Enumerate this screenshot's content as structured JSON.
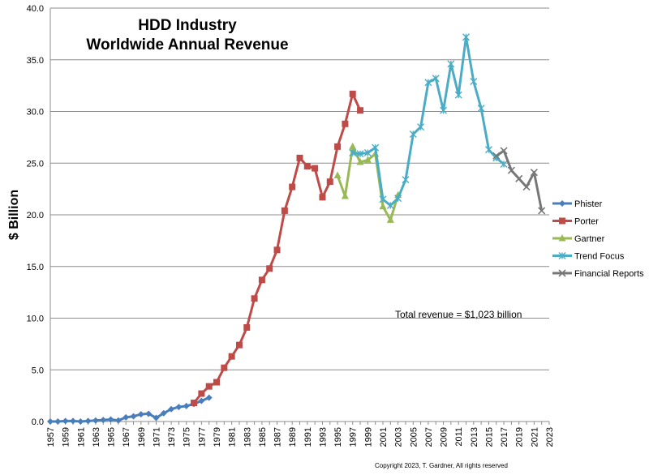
{
  "chart_data": {
    "type": "line",
    "title": [
      "HDD Industry",
      "Worldwide Annual Revenue"
    ],
    "ylabel": "$ Billion",
    "xlabel": "",
    "ylim": [
      0,
      40
    ],
    "y_ticks": [
      "0.0",
      "5.0",
      "10.0",
      "15.0",
      "20.0",
      "25.0",
      "30.0",
      "35.0",
      "40.0"
    ],
    "xlim": [
      1957,
      2023
    ],
    "x_ticks": [
      "1957",
      "1959",
      "1961",
      "1963",
      "1965",
      "1967",
      "1969",
      "1971",
      "1973",
      "1975",
      "1977",
      "1979",
      "1981",
      "1983",
      "1985",
      "1987",
      "1989",
      "1991",
      "1993",
      "1995",
      "1997",
      "1999",
      "2001",
      "2003",
      "2005",
      "2007",
      "2009",
      "2011",
      "2013",
      "2015",
      "2017",
      "2019",
      "2021",
      "2023"
    ],
    "grid": "horizontal",
    "legend_position": "right",
    "series": [
      {
        "name": "Phister",
        "color": "#4a7ebb",
        "marker": "diamond",
        "points": [
          [
            1957,
            0.0
          ],
          [
            1958,
            0.0
          ],
          [
            1959,
            0.05
          ],
          [
            1960,
            0.05
          ],
          [
            1961,
            0.0
          ],
          [
            1962,
            0.05
          ],
          [
            1963,
            0.1
          ],
          [
            1964,
            0.15
          ],
          [
            1965,
            0.2
          ],
          [
            1966,
            0.1
          ],
          [
            1967,
            0.4
          ],
          [
            1968,
            0.5
          ],
          [
            1969,
            0.7
          ],
          [
            1970,
            0.75
          ],
          [
            1971,
            0.35
          ],
          [
            1972,
            0.8
          ],
          [
            1973,
            1.2
          ],
          [
            1974,
            1.4
          ],
          [
            1975,
            1.5
          ],
          [
            1976,
            1.7
          ],
          [
            1977,
            2.0
          ],
          [
            1978,
            2.3
          ]
        ]
      },
      {
        "name": "Porter",
        "color": "#be4b48",
        "marker": "square",
        "points": [
          [
            1976,
            1.8
          ],
          [
            1977,
            2.7
          ],
          [
            1978,
            3.4
          ],
          [
            1979,
            3.8
          ],
          [
            1980,
            5.2
          ],
          [
            1981,
            6.3
          ],
          [
            1982,
            7.4
          ],
          [
            1983,
            9.1
          ],
          [
            1984,
            11.9
          ],
          [
            1985,
            13.7
          ],
          [
            1986,
            14.8
          ],
          [
            1987,
            16.6
          ],
          [
            1988,
            20.4
          ],
          [
            1989,
            22.7
          ],
          [
            1990,
            25.5
          ],
          [
            1991,
            24.7
          ],
          [
            1992,
            24.5
          ],
          [
            1993,
            21.7
          ],
          [
            1994,
            23.2
          ],
          [
            1995,
            26.6
          ],
          [
            1996,
            28.8
          ],
          [
            1997,
            31.7
          ],
          [
            1998,
            30.1
          ]
        ]
      },
      {
        "name": "Gartner",
        "color": "#98b954",
        "marker": "triangle",
        "points": [
          [
            1995,
            23.8
          ],
          [
            1996,
            21.8
          ],
          [
            1997,
            26.6
          ],
          [
            1998,
            25.1
          ],
          [
            1999,
            25.3
          ],
          [
            2000,
            25.9
          ],
          [
            2001,
            20.8
          ],
          [
            2002,
            19.5
          ],
          [
            2003,
            21.9
          ]
        ]
      },
      {
        "name": "Trend Focus",
        "color": "#4bacc6",
        "marker": "star",
        "points": [
          [
            1997,
            26.0
          ],
          [
            1998,
            25.9
          ],
          [
            1999,
            26.0
          ],
          [
            2000,
            26.5
          ],
          [
            2001,
            21.5
          ],
          [
            2002,
            20.9
          ],
          [
            2003,
            21.6
          ],
          [
            2004,
            23.4
          ],
          [
            2005,
            27.8
          ],
          [
            2006,
            28.5
          ],
          [
            2007,
            32.8
          ],
          [
            2008,
            33.2
          ],
          [
            2009,
            30.1
          ],
          [
            2010,
            34.6
          ],
          [
            2011,
            31.6
          ],
          [
            2012,
            37.2
          ],
          [
            2013,
            32.9
          ],
          [
            2014,
            30.3
          ],
          [
            2015,
            26.3
          ],
          [
            2016,
            25.5
          ],
          [
            2017,
            24.9
          ]
        ]
      },
      {
        "name": "Financial Reports",
        "color": "#777777",
        "marker": "x",
        "points": [
          [
            2016,
            25.7
          ],
          [
            2017,
            26.2
          ],
          [
            2018,
            24.3
          ],
          [
            2019,
            23.5
          ],
          [
            2020,
            22.7
          ],
          [
            2021,
            24.1
          ],
          [
            2022,
            20.4
          ]
        ]
      }
    ],
    "annotation": "Total revenue =  $1,023 billion",
    "copyright": "Copyright 2023, T. Gardner, All rights reserved"
  }
}
